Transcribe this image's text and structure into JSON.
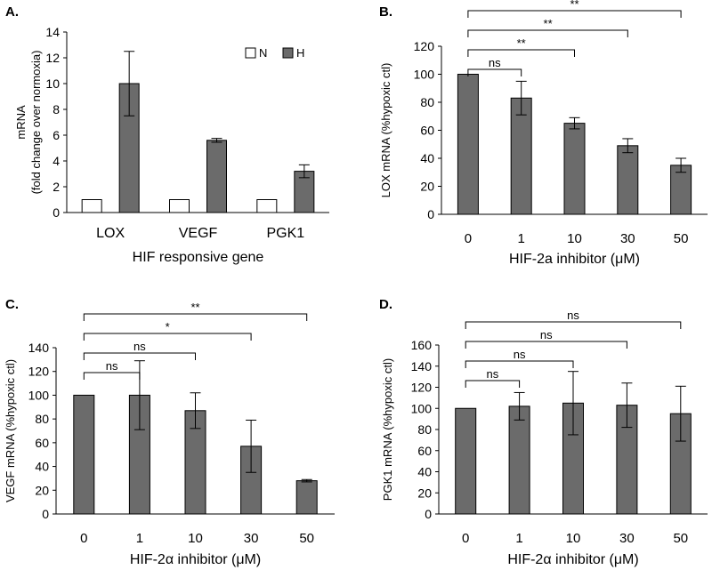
{
  "colors": {
    "bar_dark": "#6b6b6b",
    "bar_light": "#ffffff",
    "axis": "#000000"
  },
  "chart_data": [
    {
      "id": "A",
      "panel_label": "A.",
      "type": "bar",
      "title": "",
      "xlabel": "HIF responsive gene",
      "ylabel": [
        "mRNA",
        "(fold change over normoxia)"
      ],
      "categories": [
        "LOX",
        "VEGF",
        "PGK1"
      ],
      "ylim": [
        0,
        14
      ],
      "yticks": [
        0,
        2,
        4,
        6,
        8,
        10,
        12,
        14
      ],
      "legend": {
        "placement": "top-right",
        "entries": [
          "N",
          "H"
        ]
      },
      "series": [
        {
          "name": "N",
          "color": "#ffffff",
          "values": [
            1,
            1,
            1
          ],
          "errors": [
            0,
            0,
            0
          ]
        },
        {
          "name": "H",
          "color": "#6b6b6b",
          "values": [
            10.0,
            5.6,
            3.2
          ],
          "errors": [
            2.5,
            0.15,
            0.5
          ]
        }
      ],
      "significance": []
    },
    {
      "id": "B",
      "panel_label": "B.",
      "type": "bar",
      "title": "",
      "xlabel": "HIF-2a inhibitor (μM)",
      "ylabel": [
        "LOX mRNA (%hypoxic ctl)"
      ],
      "categories": [
        "0",
        "1",
        "10",
        "30",
        "50"
      ],
      "ylim": [
        0,
        120
      ],
      "yticks": [
        0,
        20,
        40,
        60,
        80,
        100,
        120
      ],
      "series": [
        {
          "name": "LOX",
          "color": "#6b6b6b",
          "values": [
            100,
            83,
            65,
            49,
            35
          ],
          "errors": [
            0,
            12,
            4,
            5,
            5
          ]
        }
      ],
      "significance": [
        {
          "from": 0,
          "to": 1,
          "label": "ns"
        },
        {
          "from": 0,
          "to": 2,
          "label": "**"
        },
        {
          "from": 0,
          "to": 3,
          "label": "**"
        },
        {
          "from": 0,
          "to": 4,
          "label": "**"
        }
      ]
    },
    {
      "id": "C",
      "panel_label": "C.",
      "type": "bar",
      "title": "",
      "xlabel": "HIF-2α inhibitor (μM)",
      "ylabel": [
        "VEGF mRNA (%hypoxic ctl)"
      ],
      "categories": [
        "0",
        "1",
        "10",
        "30",
        "50"
      ],
      "ylim": [
        0,
        140
      ],
      "yticks": [
        0,
        20,
        40,
        60,
        80,
        100,
        120,
        140
      ],
      "series": [
        {
          "name": "VEGF",
          "color": "#6b6b6b",
          "values": [
            100,
            100,
            87,
            57,
            28
          ],
          "errors": [
            0,
            29,
            15,
            22,
            1
          ]
        }
      ],
      "significance": [
        {
          "from": 0,
          "to": 1,
          "label": "ns"
        },
        {
          "from": 0,
          "to": 2,
          "label": "ns"
        },
        {
          "from": 0,
          "to": 3,
          "label": "*"
        },
        {
          "from": 0,
          "to": 4,
          "label": "**"
        }
      ]
    },
    {
      "id": "D",
      "panel_label": "D.",
      "type": "bar",
      "title": "",
      "xlabel": "HIF-2α inhibitor (μM)",
      "ylabel": [
        "PGK1 mRNA (%hypoxic ctl)"
      ],
      "categories": [
        "0",
        "1",
        "10",
        "30",
        "50"
      ],
      "ylim": [
        0,
        160
      ],
      "yticks": [
        0,
        20,
        40,
        60,
        80,
        100,
        120,
        140,
        160
      ],
      "series": [
        {
          "name": "PGK1",
          "color": "#6b6b6b",
          "values": [
            100,
            102,
            105,
            103,
            95
          ],
          "errors": [
            0,
            13,
            30,
            21,
            26
          ]
        }
      ],
      "significance": [
        {
          "from": 0,
          "to": 1,
          "label": "ns"
        },
        {
          "from": 0,
          "to": 2,
          "label": "ns"
        },
        {
          "from": 0,
          "to": 3,
          "label": "ns"
        },
        {
          "from": 0,
          "to": 4,
          "label": "ns"
        }
      ]
    }
  ]
}
